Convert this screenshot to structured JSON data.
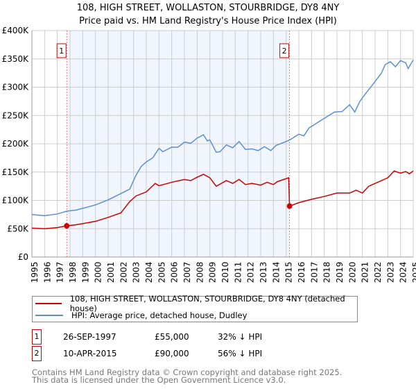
{
  "chart_data": {
    "type": "line",
    "title": "108, HIGH STREET, WOLLASTON, STOURBRIDGE, DY8 4NY",
    "subtitle": "Price paid vs. HM Land Registry's House Price Index (HPI)",
    "xlim": [
      1995,
      2025
    ],
    "ylim": [
      0,
      400000
    ],
    "x_ticks": [
      "1995",
      "1996",
      "1997",
      "1998",
      "1999",
      "2000",
      "2001",
      "2002",
      "2003",
      "2004",
      "2005",
      "2006",
      "2007",
      "2008",
      "2009",
      "2010",
      "2011",
      "2012",
      "2013",
      "2014",
      "2015",
      "2016",
      "2017",
      "2018",
      "2019",
      "2020",
      "2021",
      "2022",
      "2023",
      "2024",
      "2025"
    ],
    "y_ticks": [
      {
        "v": 0,
        "label": "£0"
      },
      {
        "v": 50000,
        "label": "£50K"
      },
      {
        "v": 100000,
        "label": "£100K"
      },
      {
        "v": 150000,
        "label": "£150K"
      },
      {
        "v": 200000,
        "label": "£200K"
      },
      {
        "v": 250000,
        "label": "£250K"
      },
      {
        "v": 300000,
        "label": "£300K"
      },
      {
        "v": 350000,
        "label": "£350K"
      },
      {
        "v": 400000,
        "label": "£400K"
      }
    ],
    "grid": true,
    "shaded_range": [
      1997.74,
      2015.27
    ],
    "series": [
      {
        "name": "108, HIGH STREET, WOLLASTON, STOURBRIDGE, DY8 4NY (detached house)",
        "color": "#cc0000",
        "x": [
          1995,
          1996,
          1997,
          1997.74,
          1998.5,
          2000,
          2001,
          2002,
          2002.7,
          2003.2,
          2004,
          2004.7,
          2005,
          2006,
          2007,
          2007.5,
          2008,
          2008.5,
          2009,
          2009.5,
          2010.3,
          2010.8,
          2011.3,
          2011.8,
          2012.3,
          2013,
          2013.5,
          2014,
          2014.3,
          2015.2,
          2015.27,
          2016,
          2017,
          2018,
          2019,
          2020,
          2020.5,
          2021,
          2021.5,
          2022,
          2023,
          2023.5,
          2024,
          2024.4,
          2024.7,
          2025
        ],
        "y": [
          51000,
          50000,
          52000,
          55000,
          57000,
          63000,
          70000,
          78000,
          98000,
          108000,
          115000,
          130000,
          126000,
          132000,
          137000,
          135000,
          141000,
          146000,
          140000,
          125000,
          135000,
          130000,
          137000,
          128000,
          130000,
          127000,
          132000,
          128000,
          133000,
          140000,
          90000,
          96000,
          102000,
          107000,
          113000,
          113000,
          118000,
          113000,
          125000,
          130000,
          140000,
          152000,
          148000,
          151000,
          147000,
          152000
        ]
      },
      {
        "name": "HPI: Average price, detached house, Dudley",
        "color": "#5b8fd0",
        "x": [
          1995,
          1996,
          1997,
          1997.75,
          1998.5,
          1999,
          2000,
          2001,
          2002,
          2002.7,
          2003.2,
          2003.6,
          2004,
          2004.5,
          2005,
          2005.3,
          2006,
          2006.5,
          2007,
          2007.5,
          2008,
          2008.5,
          2008.8,
          2009,
          2009.5,
          2009.8,
          2010.3,
          2010.8,
          2011.3,
          2011.8,
          2012.3,
          2012.8,
          2013.3,
          2013.8,
          2014.2,
          2015,
          2015.3,
          2016,
          2016.4,
          2016.8,
          2017.3,
          2018,
          2018.8,
          2019.4,
          2020,
          2020.4,
          2020.8,
          2021.3,
          2022,
          2022.5,
          2022.8,
          2023.2,
          2023.6,
          2024,
          2024.4,
          2024.6,
          2025
        ],
        "y": [
          75000,
          73000,
          76000,
          81000,
          83000,
          86000,
          92000,
          101000,
          112000,
          120000,
          145000,
          160000,
          168000,
          175000,
          192000,
          186000,
          194000,
          194000,
          203000,
          201000,
          210000,
          216000,
          205000,
          207000,
          185000,
          186000,
          198000,
          193000,
          204000,
          190000,
          191000,
          188000,
          195000,
          188000,
          197000,
          204000,
          207000,
          217000,
          214000,
          228000,
          235000,
          245000,
          256000,
          257000,
          269000,
          256000,
          275000,
          290000,
          310000,
          325000,
          340000,
          345000,
          336000,
          347000,
          343000,
          333000,
          348000
        ]
      }
    ],
    "transactions": [
      {
        "id": "1",
        "date": "26-SEP-1997",
        "year": 1997.74,
        "price": "£55,000",
        "value": 55000,
        "hpi": "32% ↓ HPI"
      },
      {
        "id": "2",
        "date": "10-APR-2015",
        "year": 2015.27,
        "price": "£90,000",
        "value": 90000,
        "hpi": "56% ↓ HPI"
      }
    ]
  },
  "footer": {
    "line1": "Contains HM Land Registry data © Crown copyright and database right 2025.",
    "line2": "This data is licensed under the Open Government Licence v3.0."
  }
}
